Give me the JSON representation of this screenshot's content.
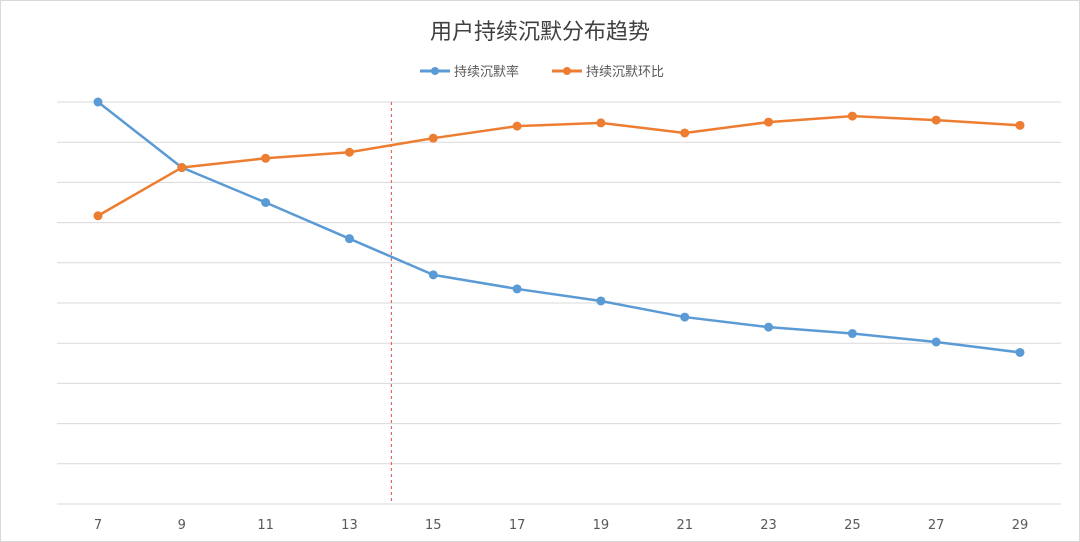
{
  "chart_data": {
    "type": "line",
    "title": "用户持续沉默分布趋势",
    "xlabel": "",
    "ylabel": "",
    "categories": [
      "7",
      "9",
      "11",
      "13",
      "15",
      "17",
      "19",
      "21",
      "23",
      "25",
      "27",
      "29"
    ],
    "ylim": [
      0,
      10
    ],
    "grid": true,
    "legend_position": "top-center",
    "series": [
      {
        "name": "持续沉默率",
        "color": "#5b9bd5",
        "values": [
          10.0,
          8.37,
          7.5,
          6.6,
          5.7,
          5.35,
          5.05,
          4.65,
          4.4,
          4.24,
          4.03,
          3.77
        ]
      },
      {
        "name": "持续沉默环比",
        "color": "#ed7d31",
        "values": [
          7.17,
          8.37,
          8.6,
          8.75,
          9.1,
          9.4,
          9.48,
          9.23,
          9.5,
          9.65,
          9.55,
          9.42
        ]
      }
    ],
    "annotations": [
      {
        "type": "vertical-dashed-line",
        "x": 14,
        "color": "#e54c4c"
      }
    ]
  }
}
